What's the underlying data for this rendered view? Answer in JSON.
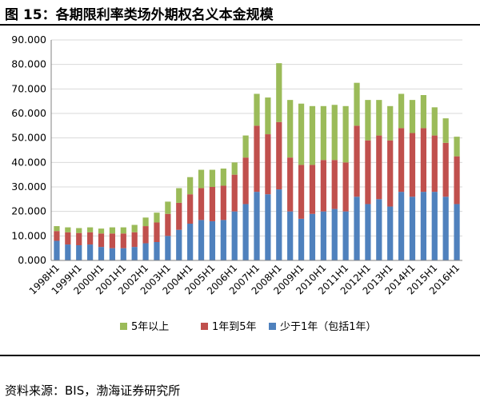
{
  "title": "图 15：各期限利率类场外期权名义本金规模",
  "source": "资料来源：BIS，渤海证券研究所",
  "colors": {
    "short": "#4f81bd",
    "mid": "#c0504d",
    "long": "#9bbb59"
  },
  "chart_data": {
    "type": "bar",
    "stacked": true,
    "title": "",
    "xlabel": "",
    "ylabel": "",
    "ylim": [
      0,
      90
    ],
    "yticks": [
      "0.000",
      "10.000",
      "20.000",
      "30.000",
      "40.000",
      "50.000",
      "60.000",
      "70.000",
      "80.000",
      "90.000"
    ],
    "xtick_labels": [
      "1998H1",
      "1999H1",
      "2000H1",
      "2001H1",
      "2002H1",
      "2003H1",
      "2004H1",
      "2005H1",
      "2006H1",
      "2007H1",
      "2008H1",
      "2009H1",
      "2010H1",
      "2011H1",
      "2012H1",
      "2013H1",
      "2014H1",
      "2015H1",
      "2016H1"
    ],
    "categories": [
      "1998H1",
      "1998H2",
      "1999H1",
      "1999H2",
      "2000H1",
      "2000H2",
      "2001H1",
      "2001H2",
      "2002H1",
      "2002H2",
      "2003H1",
      "2003H2",
      "2004H1",
      "2004H2",
      "2005H1",
      "2005H2",
      "2006H1",
      "2006H2",
      "2007H1",
      "2007H2",
      "2008H1",
      "2008H2",
      "2009H1",
      "2009H2",
      "2010H1",
      "2010H2",
      "2011H1",
      "2011H2",
      "2012H1",
      "2012H2",
      "2013H1",
      "2013H2",
      "2014H1",
      "2014H2",
      "2015H1",
      "2015H2",
      "2016H1"
    ],
    "legend_position": "bottom",
    "series": [
      {
        "name": "少于1年（包括1年）",
        "color_key": "short",
        "values": [
          8,
          6.5,
          6.2,
          6.5,
          5.5,
          5,
          5,
          5.5,
          7,
          7.5,
          10,
          12.5,
          15,
          16.5,
          16,
          16.5,
          20,
          23,
          28,
          27,
          29,
          20,
          17,
          19,
          20,
          21,
          20,
          26,
          23,
          25,
          22,
          28,
          26,
          28,
          28,
          26,
          23
        ]
      },
      {
        "name": "1年到5年",
        "color_key": "mid",
        "values": [
          4,
          5,
          5,
          5,
          5.5,
          6,
          6,
          6,
          7,
          8,
          9,
          11,
          12,
          13,
          14,
          14,
          15,
          19,
          27,
          24.5,
          27.5,
          22,
          22,
          20,
          21,
          20,
          20,
          29,
          26,
          26,
          27,
          26,
          26,
          26,
          23,
          22,
          19.5
        ]
      },
      {
        "name": "5年以上",
        "color_key": "long",
        "values": [
          2,
          2,
          2,
          2,
          2,
          2.5,
          2.5,
          3,
          3.5,
          4,
          5,
          6,
          7,
          7.5,
          7,
          7,
          5,
          9,
          13,
          15,
          24,
          23.5,
          25,
          24,
          22,
          22.5,
          23,
          17.5,
          16.5,
          14.5,
          14,
          14,
          13.5,
          13.5,
          11.5,
          10,
          8
        ]
      }
    ]
  }
}
